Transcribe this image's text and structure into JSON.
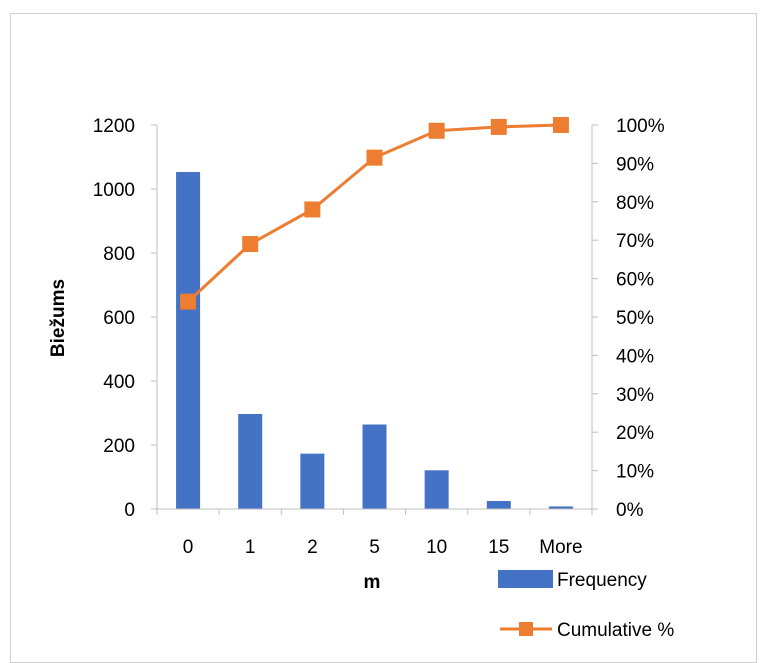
{
  "chart_data": {
    "type": "bar",
    "categories": [
      "0",
      "1",
      "2",
      "5",
      "10",
      "15",
      "More"
    ],
    "series": [
      {
        "name": "Frequency",
        "type": "bar",
        "axis": "left",
        "values": [
          1053,
          297,
          173,
          264,
          121,
          25,
          8
        ],
        "color": "#4472C4"
      },
      {
        "name": "Cumulative %",
        "type": "line",
        "axis": "right",
        "values": [
          54,
          69,
          78,
          91.5,
          98.5,
          99.5,
          100
        ],
        "color": "#ED7D31"
      }
    ],
    "xlabel": "m",
    "ylabel": "Biežums",
    "ylim": [
      0,
      1200
    ],
    "y2lim": [
      0,
      100
    ],
    "yticks": [
      "0",
      "200",
      "400",
      "600",
      "800",
      "1000",
      "1200"
    ],
    "y2ticks": [
      "0%",
      "10%",
      "20%",
      "30%",
      "40%",
      "50%",
      "60%",
      "70%",
      "80%",
      "90%",
      "100%"
    ],
    "grid": false,
    "legend_position": "bottom-right"
  }
}
